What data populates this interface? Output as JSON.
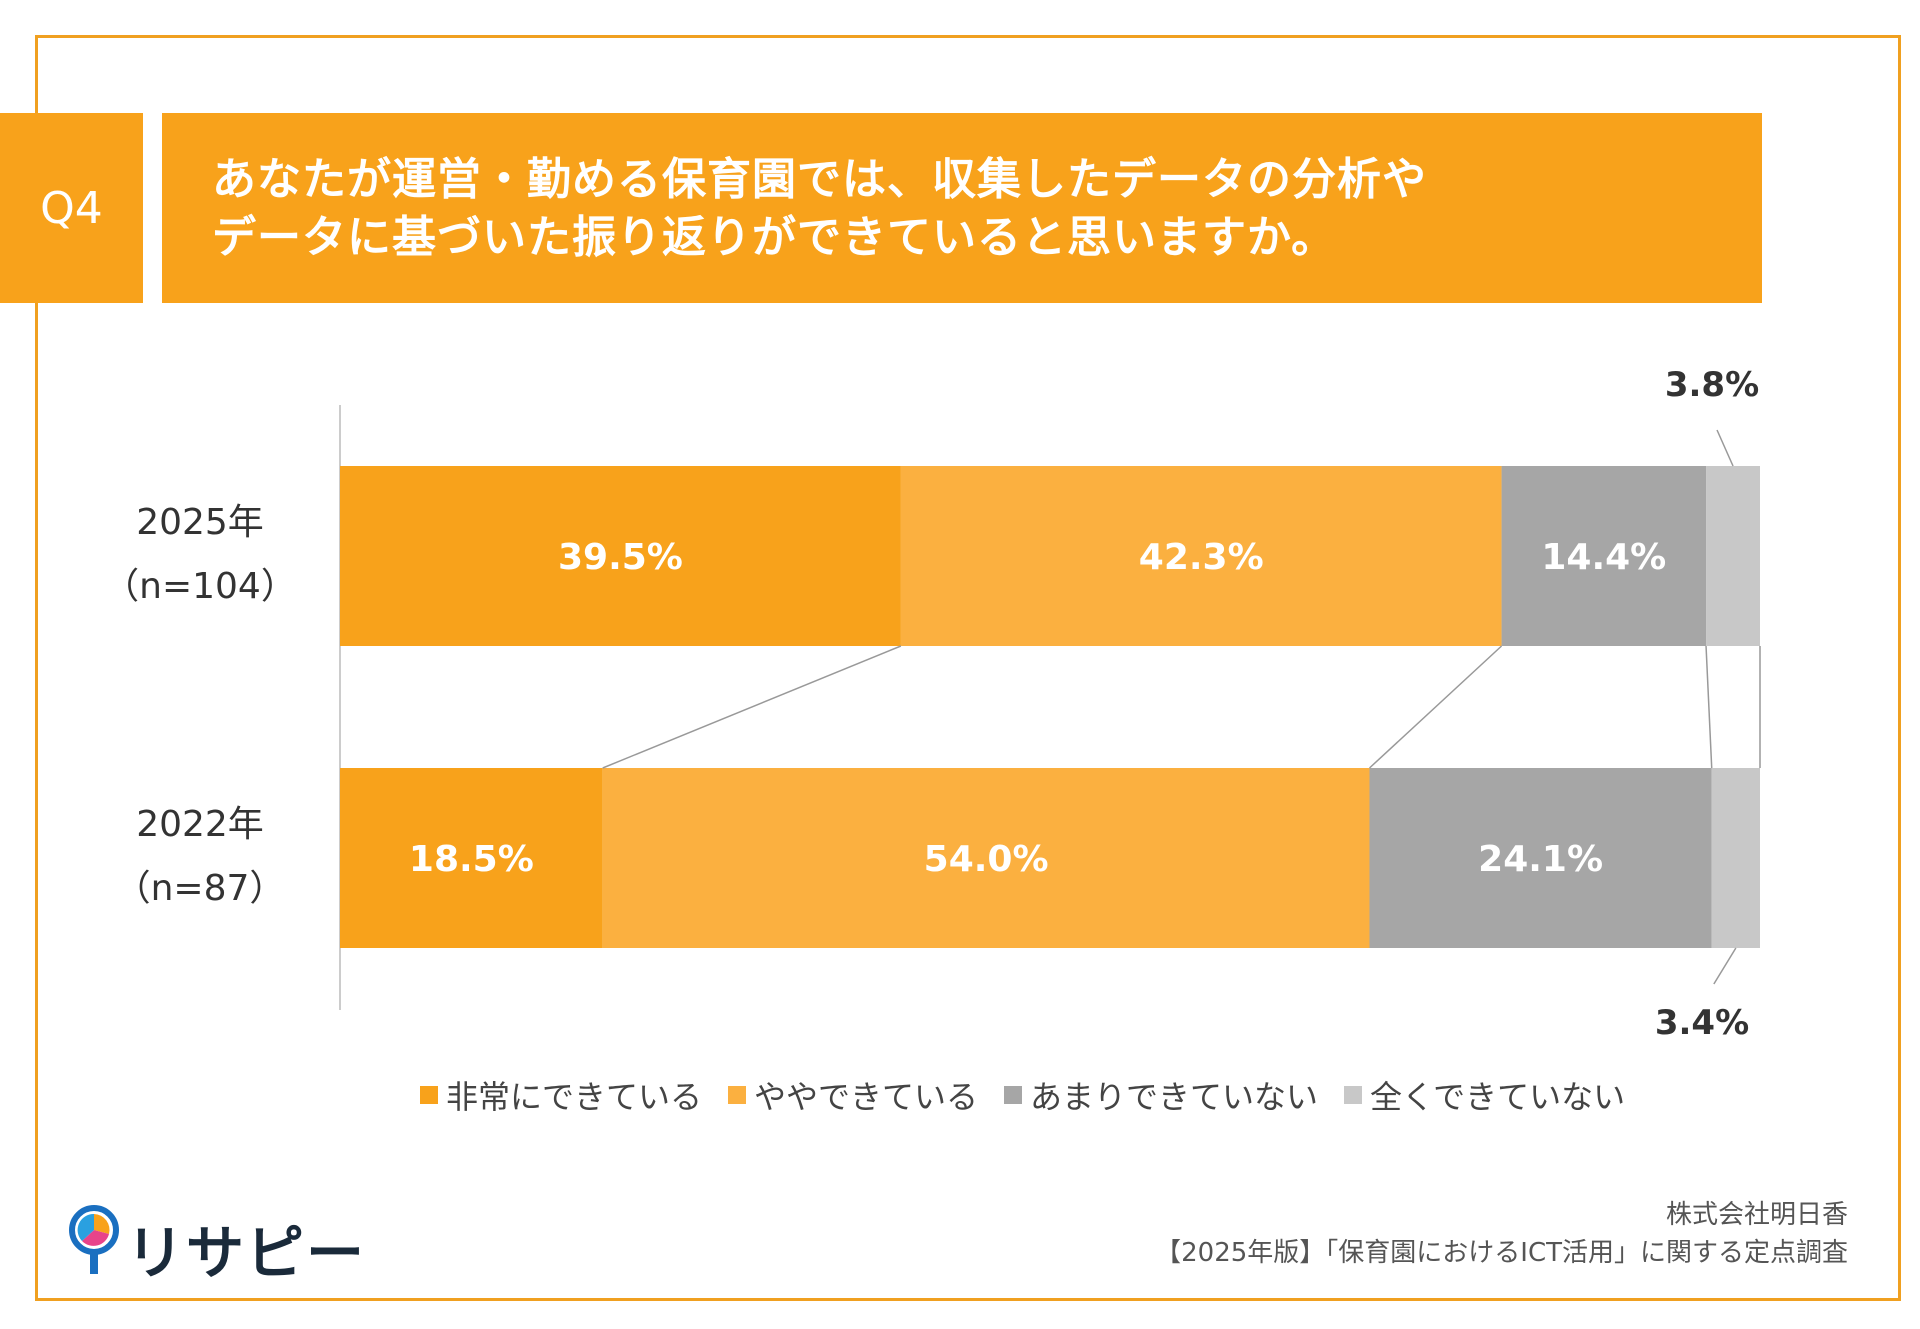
{
  "header": {
    "badge": "Q4",
    "title_line1": "あなたが運営・勤める保育園では、収集したデータの分析や",
    "title_line2": "データに基づいた振り返りができていると思いますか。"
  },
  "colors": {
    "frame": "#f0a020",
    "header_bg": "#f8a21b",
    "series": [
      "#f8a21b",
      "#fbb040",
      "#a6a6a6",
      "#c8c8c8"
    ]
  },
  "chart_data": {
    "type": "bar",
    "orientation": "horizontal",
    "stacked": true,
    "categories": [
      "2025年（n=104）",
      "2022年（n=87）"
    ],
    "category_labels": [
      {
        "line1": "2025年",
        "line2": "（n=104）"
      },
      {
        "line1": "2022年",
        "line2": "（n=87）"
      }
    ],
    "series": [
      {
        "name": "非常にできている",
        "values": [
          39.5,
          18.5
        ],
        "labels": [
          "39.5%",
          "18.5%"
        ]
      },
      {
        "name": "ややできている",
        "values": [
          42.3,
          54.0
        ],
        "labels": [
          "42.3%",
          "54.0%"
        ]
      },
      {
        "name": "あまりできていない",
        "values": [
          14.4,
          24.1
        ],
        "labels": [
          "14.4%",
          "24.1%"
        ]
      },
      {
        "name": "全くできていない",
        "values": [
          3.8,
          3.4
        ],
        "labels": [
          "3.8%",
          "3.4%"
        ]
      }
    ],
    "xlim": [
      0,
      100
    ],
    "legend_position": "bottom",
    "connector_lines": true
  },
  "footer": {
    "company": "株式会社明日香",
    "source": "【2025年版】「保育園におけるICT活用」に関する定点調査",
    "logo_text": "リサピー"
  }
}
